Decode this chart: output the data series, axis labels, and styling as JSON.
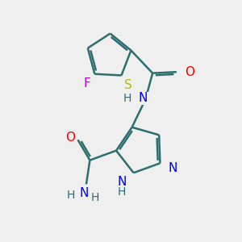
{
  "background_color": "#efefef",
  "bond_color": "#2d6e6e",
  "bond_width": 1.8,
  "atom_colors": {
    "F": "#cc00cc",
    "S": "#b8b800",
    "O": "#ff0000",
    "N": "#0000ee",
    "H": "#2d6e6e",
    "C": "#2d6e6e"
  },
  "font_size": 10,
  "fig_size": [
    3.0,
    3.0
  ],
  "dpi": 100
}
